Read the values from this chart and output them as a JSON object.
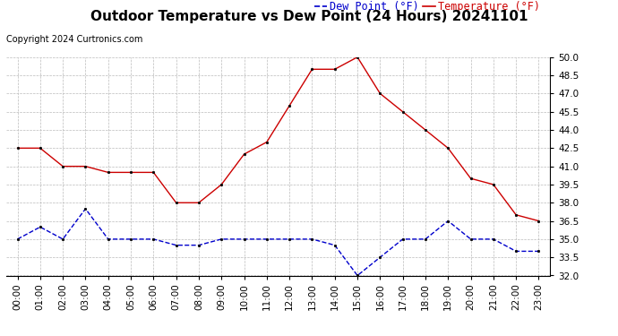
{
  "title": "Outdoor Temperature vs Dew Point (24 Hours) 20241101",
  "copyright": "Copyright 2024 Curtronics.com",
  "legend_dew": "Dew Point (°F)",
  "legend_temp": "Temperature (°F)",
  "hours": [
    "00:00",
    "01:00",
    "02:00",
    "03:00",
    "04:00",
    "05:00",
    "06:00",
    "07:00",
    "08:00",
    "09:00",
    "10:00",
    "11:00",
    "12:00",
    "13:00",
    "14:00",
    "15:00",
    "16:00",
    "17:00",
    "18:00",
    "19:00",
    "20:00",
    "21:00",
    "22:00",
    "23:00"
  ],
  "temperature": [
    42.5,
    42.5,
    41.0,
    41.0,
    40.5,
    40.5,
    40.5,
    38.0,
    38.0,
    39.5,
    42.0,
    43.0,
    46.0,
    49.0,
    49.0,
    50.0,
    47.0,
    45.5,
    44.0,
    42.5,
    40.0,
    39.5,
    37.0,
    36.5
  ],
  "dew_point": [
    35.0,
    36.0,
    35.0,
    37.5,
    35.0,
    35.0,
    35.0,
    34.5,
    34.5,
    35.0,
    35.0,
    35.0,
    35.0,
    35.0,
    34.5,
    32.0,
    33.5,
    35.0,
    35.0,
    36.5,
    35.0,
    35.0,
    34.0,
    34.0
  ],
  "temp_color": "#cc0000",
  "dew_color": "#0000cc",
  "ylim_min": 32.0,
  "ylim_max": 50.0,
  "ytick_step": 1.5,
  "bg_color": "#ffffff",
  "grid_color": "#bbbbbb",
  "title_fontsize": 11,
  "copyright_fontsize": 7,
  "legend_fontsize": 8.5,
  "tick_fontsize": 7.5
}
